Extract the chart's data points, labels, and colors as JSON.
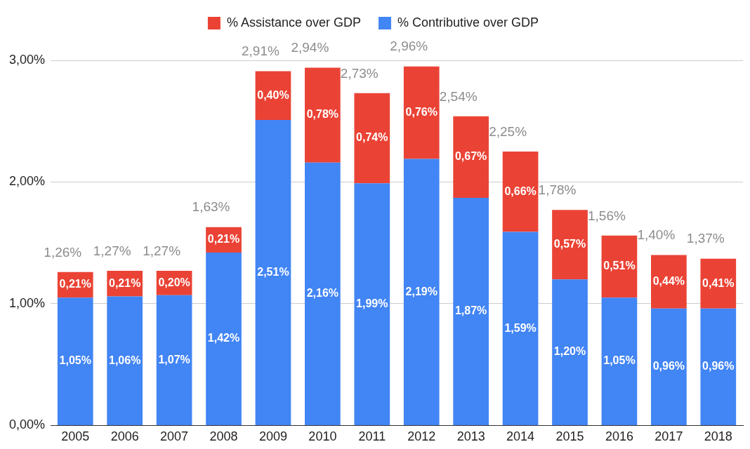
{
  "chart_data": {
    "type": "bar",
    "stacked": true,
    "categories": [
      "2005",
      "2006",
      "2007",
      "2008",
      "2009",
      "2010",
      "2011",
      "2012",
      "2013",
      "2014",
      "2015",
      "2016",
      "2017",
      "2018"
    ],
    "series": [
      {
        "name": "% Contributive over GDP",
        "color": "#4285f4",
        "values": [
          1.05,
          1.06,
          1.07,
          1.42,
          2.51,
          2.16,
          1.99,
          2.19,
          1.87,
          1.59,
          1.2,
          1.05,
          0.96,
          0.96
        ],
        "value_labels": [
          "1,05%",
          "1,06%",
          "1,07%",
          "1,42%",
          "2,51%",
          "2,16%",
          "1,99%",
          "2,19%",
          "1,87%",
          "1,59%",
          "1,20%",
          "1,05%",
          "0,96%",
          "0,96%"
        ]
      },
      {
        "name": "% Assistance over GDP",
        "color": "#ea4335",
        "values": [
          0.21,
          0.21,
          0.2,
          0.21,
          0.4,
          0.78,
          0.74,
          0.76,
          0.67,
          0.66,
          0.57,
          0.51,
          0.44,
          0.41
        ],
        "value_labels": [
          "0,21%",
          "0,21%",
          "0,20%",
          "0,21%",
          "0,40%",
          "0,78%",
          "0,74%",
          "0,76%",
          "0,67%",
          "0,66%",
          "0,57%",
          "0,51%",
          "0,44%",
          "0,41%"
        ]
      }
    ],
    "totals": [
      "1,26%",
      "1,27%",
      "1,27%",
      "1,63%",
      "2,91%",
      "2,94%",
      "2,73%",
      "2,96%",
      "2,54%",
      "2,25%",
      "1,78%",
      "1,56%",
      "1,40%",
      "1,37%"
    ],
    "ylim": [
      0,
      3
    ],
    "yticks": [
      {
        "value": 0,
        "label": "0,00%"
      },
      {
        "value": 1,
        "label": "1,00%"
      },
      {
        "value": 2,
        "label": "2,00%"
      },
      {
        "value": 3,
        "label": "3,00%"
      }
    ],
    "grid": "y",
    "legend": "top"
  }
}
